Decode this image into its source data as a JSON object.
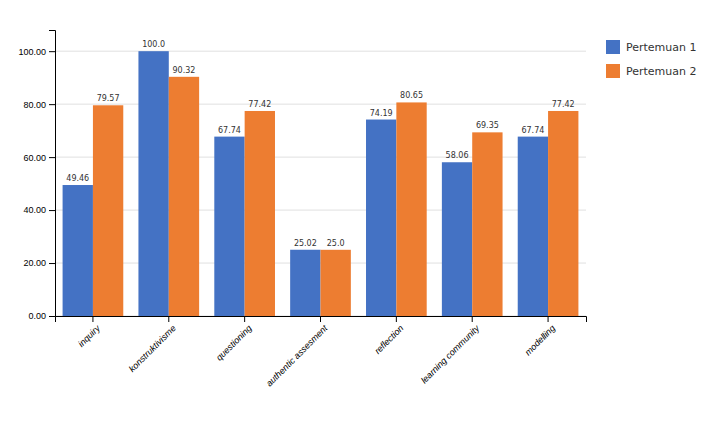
{
  "chart_data": {
    "type": "bar",
    "categories": [
      "inquiry",
      "konstruktivisme",
      "questioning",
      "authentic assesment",
      "reflection",
      "learning community",
      "modelling"
    ],
    "series": [
      {
        "name": "Pertemuan 1",
        "color": "#4472C4",
        "values": [
          49.46,
          100.0,
          67.74,
          25.02,
          74.19,
          58.06,
          67.74
        ],
        "value_labels": [
          "49.46",
          "100.0",
          "67.74",
          "25.02",
          "74.19",
          "58.06",
          "67.74"
        ]
      },
      {
        "name": "Pertemuan 2",
        "color": "#ED7D31",
        "values": [
          79.57,
          90.32,
          77.42,
          25.0,
          80.65,
          69.35,
          77.42
        ],
        "value_labels": [
          "79.57",
          "90.32",
          "77.42",
          "25.0",
          "80.65",
          "69.35",
          "77.42"
        ]
      }
    ],
    "ylim": [
      0,
      108
    ],
    "yticks": [
      {
        "value": 0,
        "label": "0.00"
      },
      {
        "value": 20,
        "label": "20.00"
      },
      {
        "value": 40,
        "label": "40.00"
      },
      {
        "value": 60,
        "label": "60.00"
      },
      {
        "value": 80,
        "label": "80.00"
      },
      {
        "value": 100,
        "label": "100.00"
      }
    ],
    "grid": true,
    "legend": "right",
    "data_labels": true
  }
}
